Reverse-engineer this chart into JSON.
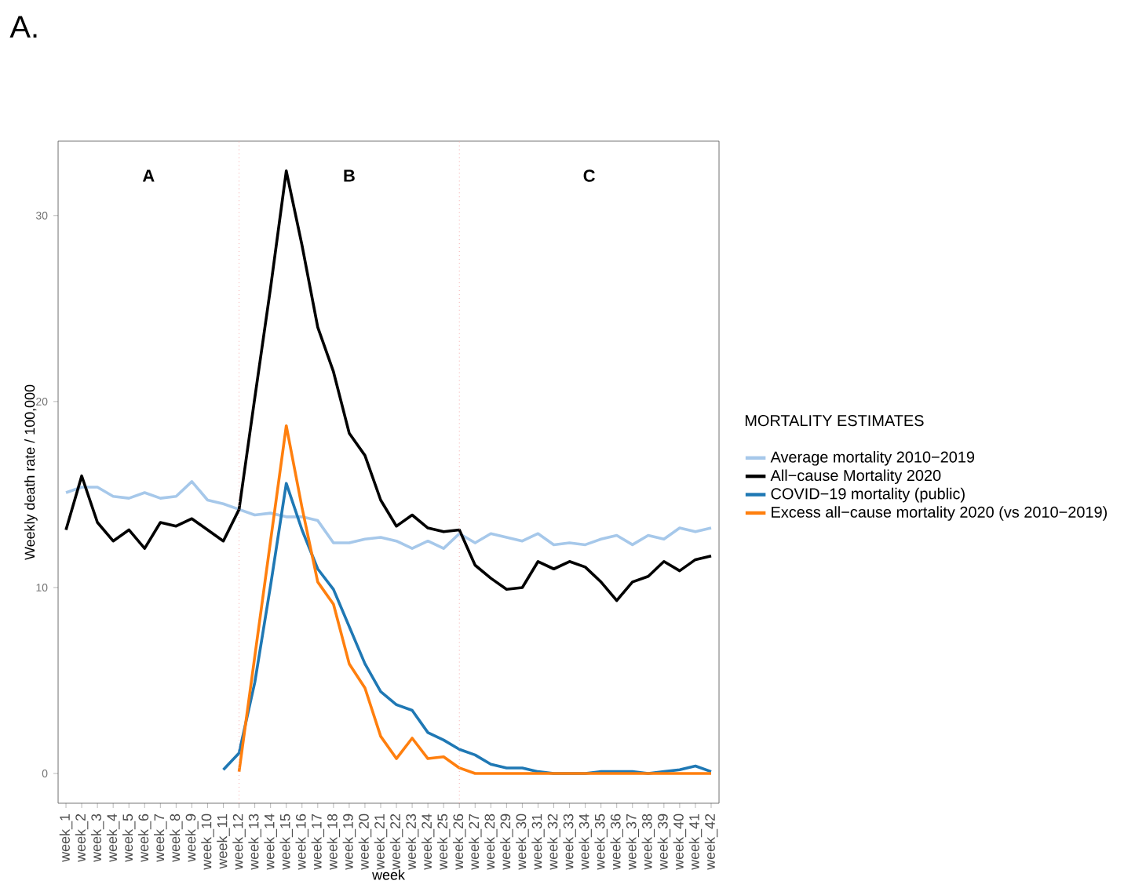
{
  "chart_data": {
    "type": "line",
    "title": "A.",
    "xlabel": "week",
    "ylabel": "Weekly death rate / 100,000",
    "legend_title": "MORTALITY ESTIMATES",
    "categories": [
      "week_1",
      "week_2",
      "week_3",
      "week_4",
      "week_5",
      "week_6",
      "week_7",
      "week_8",
      "week_9",
      "week_10",
      "week_11",
      "week_12",
      "week_13",
      "week_14",
      "week_15",
      "week_16",
      "week_17",
      "week_18",
      "week_19",
      "week_20",
      "week_21",
      "week_22",
      "week_23",
      "week_24",
      "week_25",
      "week_26",
      "week_27",
      "week_28",
      "week_29",
      "week_30",
      "week_31",
      "week_32",
      "week_33",
      "week_34",
      "week_35",
      "week_36",
      "week_37",
      "week_38",
      "week_39",
      "week_40",
      "week_41",
      "week_42"
    ],
    "series": [
      {
        "name": "Average mortality 2010−2019",
        "color": "#a6c8ea",
        "values": [
          15.1,
          15.4,
          15.4,
          14.9,
          14.8,
          15.1,
          14.8,
          14.9,
          15.7,
          14.7,
          14.5,
          14.2,
          13.9,
          14.0,
          13.8,
          13.8,
          13.6,
          12.4,
          12.4,
          12.6,
          12.7,
          12.5,
          12.1,
          12.5,
          12.1,
          12.9,
          12.4,
          12.9,
          12.7,
          12.5,
          12.9,
          12.3,
          12.4,
          12.3,
          12.6,
          12.8,
          12.3,
          12.8,
          12.6,
          13.2,
          13.0,
          13.2
        ]
      },
      {
        "name": "All−cause Mortality 2020",
        "color": "#000000",
        "values": [
          13.1,
          16.0,
          13.5,
          12.5,
          13.1,
          12.1,
          13.5,
          13.3,
          13.7,
          13.1,
          12.5,
          14.2,
          20.2,
          26.1,
          32.4,
          28.4,
          24.0,
          21.6,
          18.3,
          17.1,
          14.7,
          13.3,
          13.9,
          13.2,
          13.0,
          13.1,
          11.2,
          10.5,
          9.9,
          10.0,
          11.4,
          11.0,
          11.4,
          11.1,
          10.3,
          9.3,
          10.3,
          10.6,
          11.4,
          10.9,
          11.5,
          11.7
        ]
      },
      {
        "name": "COVID−19 mortality (public)",
        "color": "#1f78b4",
        "values": [
          null,
          null,
          null,
          null,
          null,
          null,
          null,
          null,
          null,
          null,
          0.2,
          1.1,
          4.9,
          10.1,
          15.6,
          13.1,
          11.0,
          9.9,
          7.9,
          5.9,
          4.4,
          3.7,
          3.4,
          2.2,
          1.8,
          1.3,
          1.0,
          0.5,
          0.3,
          0.3,
          0.1,
          0.0,
          0,
          0,
          0.1,
          0.1,
          0.1,
          0.0,
          0.1,
          0.2,
          0.4,
          0.1
        ]
      },
      {
        "name": "Excess all−cause mortality 2020 (vs 2010−2019)",
        "color": "#ff7f0e",
        "values": [
          null,
          null,
          null,
          null,
          null,
          null,
          null,
          null,
          null,
          null,
          null,
          0.1,
          6.3,
          12.5,
          18.7,
          14.3,
          10.3,
          9.1,
          5.9,
          4.6,
          2.0,
          0.8,
          1.9,
          0.8,
          0.9,
          0.3,
          0,
          0,
          0,
          0,
          0,
          0,
          0,
          0,
          0,
          0,
          0,
          0,
          0,
          0,
          0,
          0
        ]
      }
    ],
    "ylim": [
      -1.6,
      34
    ],
    "yticks": [
      0,
      10,
      20,
      30
    ],
    "grid": false,
    "legend": "right",
    "marker": "none",
    "line_style": "solid",
    "ref_lines": [
      {
        "axis": "x",
        "value": "week_12",
        "color": "#f4a6a6",
        "line_style": "dotted"
      },
      {
        "axis": "x",
        "value": "week_26",
        "color": "#f4a6a6",
        "line_style": "dotted"
      }
    ],
    "annotations": [
      "A",
      "B",
      "C"
    ]
  }
}
